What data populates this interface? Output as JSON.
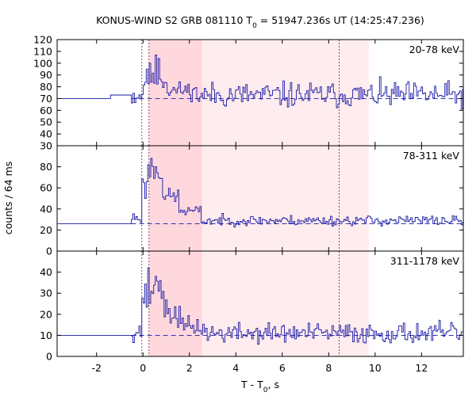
{
  "chart_data": {
    "type": "line",
    "title_main": "KONUS-WIND S2 GRB 081110 T",
    "title_sub": "0",
    "title_rest": " = 51947.236s UT (14:25:47.236)",
    "ylabel": "counts / 64 ms",
    "xlabel_main": "T - T",
    "xlabel_sub": "0",
    "xlabel_rest": ", s",
    "xlim": [
      -3.7,
      13.8
    ],
    "x_ticks": [
      -2,
      0,
      2,
      4,
      6,
      8,
      10,
      12
    ],
    "x_tick_labels": [
      "-2",
      "0",
      "2",
      "4",
      "6",
      "8",
      "10",
      "12"
    ],
    "shaded_regions": [
      {
        "name": "inner-interval",
        "x0": 0.256,
        "x1": 2.56,
        "color": "#ffd8de"
      },
      {
        "name": "outer-interval",
        "x0": 2.56,
        "x1": 9.73,
        "color": "#ffecee"
      }
    ],
    "vlines": [
      -0.05,
      0.256,
      8.45
    ],
    "line_color": "#1a1aa6",
    "panels": [
      {
        "name": "band-20-78",
        "label": "20-78 keV",
        "ylim": [
          30,
          120
        ],
        "y_ticks": [
          30,
          40,
          50,
          60,
          70,
          80,
          90,
          100,
          110,
          120
        ],
        "y_tick_labels": [
          "30",
          "40",
          "50",
          "60",
          "70",
          "80",
          "90",
          "100",
          "110",
          "120"
        ],
        "background_level": 70,
        "pre_trigger": [
          [
            -3.7,
            70
          ],
          [
            -1.4,
            70
          ],
          [
            -1.4,
            73
          ],
          [
            -0.5,
            73
          ]
        ],
        "segments": [
          [
            0.0,
            1.0,
            85,
            6
          ],
          [
            1.0,
            2.2,
            77,
            6
          ],
          [
            2.2,
            13.8,
            73,
            9
          ]
        ],
        "peaks": [
          [
            0.3,
            100
          ],
          [
            0.5,
            107
          ],
          [
            0.65,
            104
          ],
          [
            0.15,
            95
          ]
        ],
        "seed": 11
      },
      {
        "name": "band-78-311",
        "label": "78-311 keV",
        "ylim": [
          0,
          100
        ],
        "y_ticks": [
          0,
          20,
          40,
          60,
          80
        ],
        "y_tick_labels": [
          "0",
          "20",
          "40",
          "60",
          "80"
        ],
        "background_level": 26,
        "pre_trigger": [
          [
            -3.7,
            26
          ],
          [
            -0.5,
            26
          ]
        ],
        "segments": [
          [
            -0.5,
            -0.1,
            32,
            5
          ],
          [
            -0.1,
            0.2,
            60,
            10
          ],
          [
            0.2,
            0.8,
            75,
            8
          ],
          [
            0.8,
            1.5,
            52,
            6
          ],
          [
            1.5,
            2.5,
            38,
            4
          ],
          [
            2.5,
            13.8,
            29,
            4
          ]
        ],
        "peaks": [
          [
            0.35,
            88
          ],
          [
            0.2,
            82
          ],
          [
            0.5,
            80
          ]
        ],
        "seed": 23
      },
      {
        "name": "band-311-1178",
        "label": "311-1178 keV",
        "ylim": [
          0,
          50
        ],
        "y_ticks": [
          0,
          10,
          20,
          30,
          40
        ],
        "y_tick_labels": [
          "0",
          "10",
          "20",
          "30",
          "40"
        ],
        "background_level": 10,
        "pre_trigger": [
          [
            -3.7,
            10
          ],
          [
            -0.5,
            10
          ]
        ],
        "segments": [
          [
            -0.5,
            -0.1,
            12,
            4
          ],
          [
            -0.1,
            0.3,
            28,
            6
          ],
          [
            0.3,
            0.9,
            32,
            5
          ],
          [
            0.9,
            1.6,
            20,
            5
          ],
          [
            1.6,
            2.6,
            14,
            4
          ],
          [
            2.6,
            13.8,
            11,
            4
          ]
        ],
        "peaks": [
          [
            0.2,
            42
          ],
          [
            0.55,
            38
          ],
          [
            0.7,
            36
          ]
        ],
        "seed": 37
      }
    ]
  }
}
